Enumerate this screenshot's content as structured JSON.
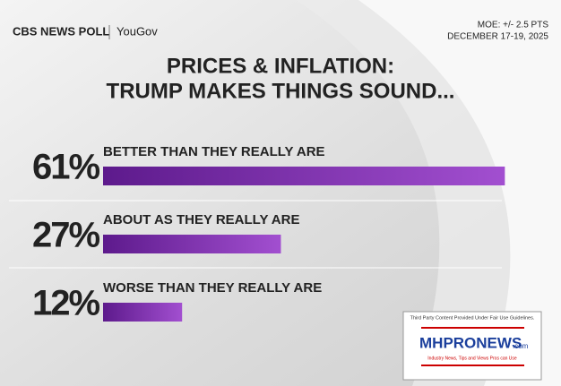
{
  "header": {
    "brand": "CBS NEWS POLL",
    "partner": "YouGov",
    "moe": "MOE: +/- 2.5 PTS",
    "dates": "DECEMBER 17-19, 2025"
  },
  "chart_data": {
    "type": "hbar",
    "title": [
      "PRICES & INFLATION:",
      "TRUMP MAKES THINGS SOUND..."
    ],
    "categories": [
      "BETTER THAN THEY REALLY ARE",
      "ABOUT AS THEY REALLY ARE",
      "WORSE THAN THEY REALLY ARE"
    ],
    "values": [
      61,
      27,
      12
    ],
    "value_labels": [
      "61%",
      "27%",
      "12%"
    ],
    "color": "#7b2fa8"
  },
  "watermark": {
    "notice": "Third Party Content Provided Under Fair Use Guidelines.",
    "logo": "MHPRONEWS",
    "domain": ".com",
    "tagline": "Industry News, Tips and Views Pros can Use"
  }
}
